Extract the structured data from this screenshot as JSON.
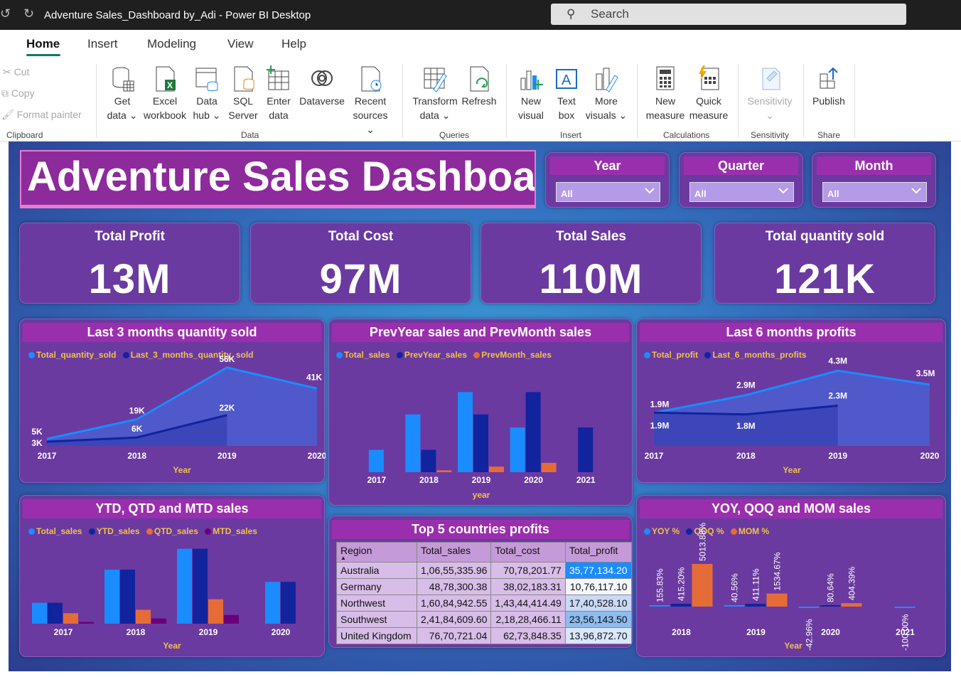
{
  "window": {
    "title": "Adventure Sales_Dashboard by_Adi - Power BI Desktop",
    "search_placeholder": "Search"
  },
  "tabs": [
    "Home",
    "Insert",
    "Modeling",
    "View",
    "Help"
  ],
  "clipboard": {
    "cut": "Cut",
    "copy": "Copy",
    "format_painter": "Format painter",
    "group": "Clipboard"
  },
  "ribbon": {
    "get_data": [
      "Get",
      "data"
    ],
    "excel": [
      "Excel",
      "workbook"
    ],
    "data_hub": [
      "Data",
      "hub"
    ],
    "sql": [
      "SQL",
      "Server"
    ],
    "enter_data": [
      "Enter",
      "data"
    ],
    "dataverse": "Dataverse",
    "recent": [
      "Recent",
      "sources"
    ],
    "group_data": "Data",
    "transform": [
      "Transform",
      "data"
    ],
    "refresh": "Refresh",
    "group_queries": "Queries",
    "new_visual": [
      "New",
      "visual"
    ],
    "text_box": [
      "Text",
      "box"
    ],
    "more_visuals": [
      "More",
      "visuals"
    ],
    "group_insert": "Insert",
    "new_measure": [
      "New",
      "measure"
    ],
    "quick_measure": [
      "Quick",
      "measure"
    ],
    "group_calc": "Calculations",
    "sensitivity": "Sensitivity",
    "group_sens": "Sensitivity",
    "publish": "Publish",
    "group_share": "Share"
  },
  "dashboard": {
    "title": "Adventure Sales Dashboard",
    "slicers": [
      {
        "label": "Year",
        "value": "All"
      },
      {
        "label": "Quarter",
        "value": "All"
      },
      {
        "label": "Month",
        "value": "All"
      }
    ],
    "kpis": [
      {
        "label": "Total Profit",
        "value": "13M"
      },
      {
        "label": "Total Cost",
        "value": "97M"
      },
      {
        "label": "Total Sales",
        "value": "110M"
      },
      {
        "label": "Total quantity sold",
        "value": "121K"
      }
    ]
  },
  "colors": {
    "blue": "#1a8cff",
    "navy": "#12239e",
    "orange": "#e66c37",
    "purple": "#6b007b",
    "legend_text": "#f2c14a"
  },
  "chart_data": [
    {
      "type": "area",
      "title": "Last 3 months quantity sold",
      "xlabel": "Year",
      "x": [
        "2017",
        "2018",
        "2019",
        "2020"
      ],
      "series": [
        {
          "name": "Total_quantity_sold",
          "values": [
            5,
            19,
            56,
            41
          ],
          "labels": [
            "5K",
            "19K",
            "56K",
            "41K"
          ]
        },
        {
          "name": "Last_3_months_quantity_sold",
          "values": [
            3,
            6,
            22,
            null
          ],
          "labels": [
            "3K",
            "6K",
            "22K",
            ""
          ]
        }
      ]
    },
    {
      "type": "bar",
      "title": "PrevYear sales and PrevMonth sales",
      "xlabel": "year",
      "categories": [
        "2017",
        "2018",
        "2019",
        "2020",
        "2021"
      ],
      "series": [
        {
          "name": "Total_sales",
          "values": [
            12,
            31,
            43,
            24,
            null
          ]
        },
        {
          "name": "PrevYear_sales",
          "values": [
            null,
            12,
            31,
            43,
            24
          ]
        },
        {
          "name": "PrevMonth_sales",
          "values": [
            null,
            1,
            3,
            5,
            null
          ]
        }
      ]
    },
    {
      "type": "area",
      "title": "Last 6 months profits",
      "xlabel": "Year",
      "x": [
        "2017",
        "2018",
        "2019",
        "2020"
      ],
      "series": [
        {
          "name": "Total_profit",
          "values": [
            1.9,
            2.9,
            4.3,
            3.5
          ],
          "labels": [
            "1.9M",
            "2.9M",
            "4.3M",
            "3.5M"
          ]
        },
        {
          "name": "Last_6_months_profits",
          "values": [
            1.9,
            1.8,
            2.3,
            null
          ],
          "labels": [
            "1.9M",
            "1.8M",
            "2.3M",
            ""
          ]
        }
      ]
    },
    {
      "type": "bar",
      "title": "YTD, QTD and MTD sales",
      "xlabel": "Year",
      "categories": [
        "2017",
        "2018",
        "2019",
        "2020"
      ],
      "series": [
        {
          "name": "Total_sales",
          "values": [
            12,
            31,
            43,
            24
          ]
        },
        {
          "name": "YTD_sales",
          "values": [
            12,
            31,
            43,
            24
          ]
        },
        {
          "name": "QTD_sales",
          "values": [
            6,
            8,
            14,
            null
          ]
        },
        {
          "name": "MTD_sales",
          "values": [
            1,
            3,
            5,
            null
          ]
        }
      ]
    },
    {
      "type": "table",
      "title": "Top 5 countries profits",
      "columns": [
        "Region",
        "Total_sales",
        "Total_cost",
        "Total_profit"
      ],
      "rows": [
        [
          "Australia",
          "1,06,55,335.96",
          "70,78,201.77",
          "35,77,134.20"
        ],
        [
          "Germany",
          "48,78,300.38",
          "38,02,183.31",
          "10,76,117.10"
        ],
        [
          "Northwest",
          "1,60,84,942.55",
          "1,43,44,414.49",
          "17,40,528.10"
        ],
        [
          "Southwest",
          "2,41,84,609.60",
          "2,18,28,466.11",
          "23,56,143.50"
        ],
        [
          "United Kingdom",
          "76,70,721.04",
          "62,73,848.35",
          "13,96,872.70"
        ]
      ]
    },
    {
      "type": "bar",
      "title": "YOY, QOQ and MOM sales",
      "xlabel": "Year",
      "categories": [
        "2018",
        "2019",
        "2020",
        "2021"
      ],
      "series": [
        {
          "name": "YOY %",
          "values": [
            155.83,
            40.56,
            -42.96,
            -100.0
          ],
          "labels": [
            "155.83%",
            "40.56%",
            "-42.96%",
            "-100.00%"
          ]
        },
        {
          "name": "QOQ %",
          "values": [
            415.2,
            411.11,
            80.64,
            null
          ],
          "labels": [
            "415.20%",
            "411.11%",
            "80.64%",
            ""
          ]
        },
        {
          "name": "MOM %",
          "values": [
            5013.88,
            1534.67,
            404.39,
            null
          ],
          "labels": [
            "5013.88%",
            "1534.67%",
            "404.39%",
            ""
          ]
        }
      ]
    }
  ]
}
